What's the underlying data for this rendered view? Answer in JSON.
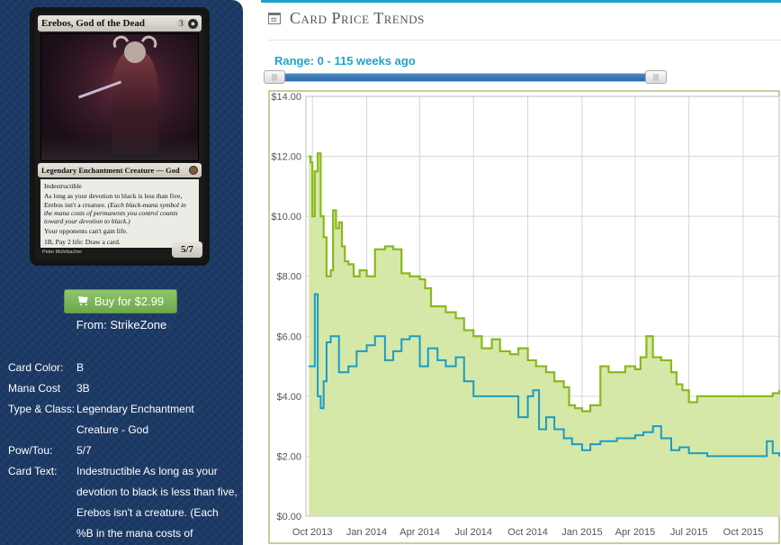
{
  "card": {
    "name": "Erebos, God of the Dead",
    "cost_generic": "3",
    "cost_symbol": "black-mana-icon",
    "type_line": "Legendary Enchantment Creature — God",
    "rules": [
      "Indestructible",
      "As long as your devotion to black is less than five, Erebos isn't a creature.",
      "(Each black-mana symbol in the mana costs of permanents you control counts toward your devotion to black.)",
      "Your opponents can't gain life.",
      "1B, Pay 2 life: Draw a card."
    ],
    "power_toughness": "5/7",
    "artist": "Peter Mohrbacher"
  },
  "buy": {
    "label": "Buy for $2.99",
    "from": "From: StrikeZone"
  },
  "details": [
    {
      "key": "Card Color:",
      "value": "B"
    },
    {
      "key": "Mana Cost",
      "value": "3B"
    },
    {
      "key": "Type & Class:",
      "value": "Legendary Enchantment Creature - God"
    },
    {
      "key": "Pow/Tou:",
      "value": "5/7"
    },
    {
      "key": "Card Text:",
      "value": "Indestructible As long as your devotion to black is less than five, Erebos isn't a creature. (Each %B in the mana costs of"
    }
  ],
  "panel": {
    "title": "Card Price Trends",
    "range_label": "Range: 0 - 115 weeks ago"
  },
  "colors": {
    "sidebar": "#1c3a66",
    "accent": "#1ea3c8",
    "buy": "#7ab85a",
    "area_fill": "#d5e8a8",
    "area_line": "#8ab81e",
    "buy_line": "#1a9cc4"
  },
  "chart_data": {
    "type": "area",
    "title": "",
    "xlabel": "",
    "ylabel": "",
    "ylim": [
      0,
      14
    ],
    "yticks": [
      "$0.00",
      "$2.00",
      "$4.00",
      "$6.00",
      "$8.00",
      "$10.00",
      "$12.00",
      "$14.00"
    ],
    "xlim": [
      "2013-09-20",
      "2015-12-01"
    ],
    "xticks": [
      "Oct 2013",
      "Jan 2014",
      "Apr 2014",
      "Jul 2014",
      "Oct 2014",
      "Jan 2015",
      "Apr 2015",
      "Jul 2015",
      "Oct 2015"
    ],
    "grid": true,
    "legend": "none",
    "series": [
      {
        "kind": "area",
        "x": [
          "2013-09-25",
          "2013-09-28",
          "2013-10-01",
          "2013-10-05",
          "2013-10-10",
          "2013-10-15",
          "2013-10-20",
          "2013-10-25",
          "2013-11-01",
          "2013-11-05",
          "2013-11-10",
          "2013-11-15",
          "2013-11-20",
          "2013-11-25",
          "2013-12-01",
          "2013-12-10",
          "2013-12-20",
          "2014-01-01",
          "2014-01-15",
          "2014-02-01",
          "2014-02-15",
          "2014-03-01",
          "2014-03-15",
          "2014-04-01",
          "2014-04-10",
          "2014-04-20",
          "2014-05-01",
          "2014-05-15",
          "2014-06-01",
          "2014-06-15",
          "2014-07-01",
          "2014-07-15",
          "2014-08-01",
          "2014-08-15",
          "2014-09-01",
          "2014-09-15",
          "2014-10-01",
          "2014-10-15",
          "2014-11-01",
          "2014-11-15",
          "2014-12-01",
          "2014-12-10",
          "2014-12-20",
          "2015-01-01",
          "2015-01-15",
          "2015-02-01",
          "2015-02-15",
          "2015-03-01",
          "2015-03-15",
          "2015-04-01",
          "2015-04-10",
          "2015-04-20",
          "2015-05-01",
          "2015-05-15",
          "2015-06-01",
          "2015-06-10",
          "2015-06-20",
          "2015-07-01",
          "2015-07-15",
          "2015-08-01",
          "2015-09-01",
          "2015-10-01",
          "2015-11-01",
          "2015-11-20",
          "2015-12-01"
        ],
        "values": [
          12.0,
          11.8,
          10.0,
          11.5,
          12.1,
          10.0,
          9.3,
          8.0,
          8.2,
          10.2,
          9.6,
          9.8,
          9.0,
          8.5,
          8.4,
          8.0,
          8.2,
          8.0,
          8.9,
          9.0,
          8.9,
          8.1,
          8.0,
          7.9,
          7.6,
          7.0,
          7.0,
          6.8,
          6.6,
          6.2,
          6.0,
          5.6,
          5.9,
          5.5,
          5.4,
          5.6,
          5.2,
          5.0,
          4.8,
          4.5,
          4.3,
          3.7,
          3.6,
          3.5,
          3.7,
          5.0,
          4.8,
          4.8,
          5.0,
          4.9,
          5.3,
          6.0,
          5.3,
          5.2,
          4.8,
          4.4,
          4.2,
          3.8,
          4.0,
          4.0,
          4.0,
          4.0,
          4.0,
          4.1,
          4.2
        ]
      },
      {
        "kind": "line",
        "x": [
          "2013-09-25",
          "2013-10-01",
          "2013-10-05",
          "2013-10-10",
          "2013-10-15",
          "2013-10-20",
          "2013-10-25",
          "2013-11-01",
          "2013-11-15",
          "2013-12-01",
          "2013-12-15",
          "2014-01-01",
          "2014-01-15",
          "2014-02-01",
          "2014-02-15",
          "2014-03-01",
          "2014-03-15",
          "2014-04-01",
          "2014-04-15",
          "2014-05-01",
          "2014-05-15",
          "2014-06-01",
          "2014-06-15",
          "2014-07-01",
          "2014-08-01",
          "2014-09-01",
          "2014-09-15",
          "2014-10-01",
          "2014-10-10",
          "2014-10-20",
          "2014-11-01",
          "2014-11-15",
          "2014-12-01",
          "2014-12-15",
          "2015-01-01",
          "2015-01-15",
          "2015-02-01",
          "2015-03-01",
          "2015-04-01",
          "2015-04-15",
          "2015-05-01",
          "2015-05-15",
          "2015-06-01",
          "2015-06-15",
          "2015-07-01",
          "2015-08-01",
          "2015-09-01",
          "2015-10-01",
          "2015-11-01",
          "2015-11-10",
          "2015-11-20",
          "2015-12-01"
        ],
        "values": [
          5.0,
          5.0,
          7.4,
          4.0,
          3.6,
          4.5,
          5.8,
          6.0,
          4.8,
          5.0,
          5.5,
          5.7,
          6.0,
          5.2,
          5.5,
          5.9,
          6.0,
          5.0,
          5.6,
          5.2,
          5.0,
          5.3,
          4.5,
          4.0,
          4.0,
          4.0,
          3.3,
          4.0,
          4.2,
          2.9,
          3.3,
          2.9,
          2.6,
          2.4,
          2.2,
          2.4,
          2.5,
          2.6,
          2.7,
          2.8,
          3.0,
          2.6,
          2.2,
          2.3,
          2.1,
          2.0,
          2.0,
          2.0,
          2.0,
          2.5,
          2.1,
          2.0
        ]
      }
    ]
  }
}
